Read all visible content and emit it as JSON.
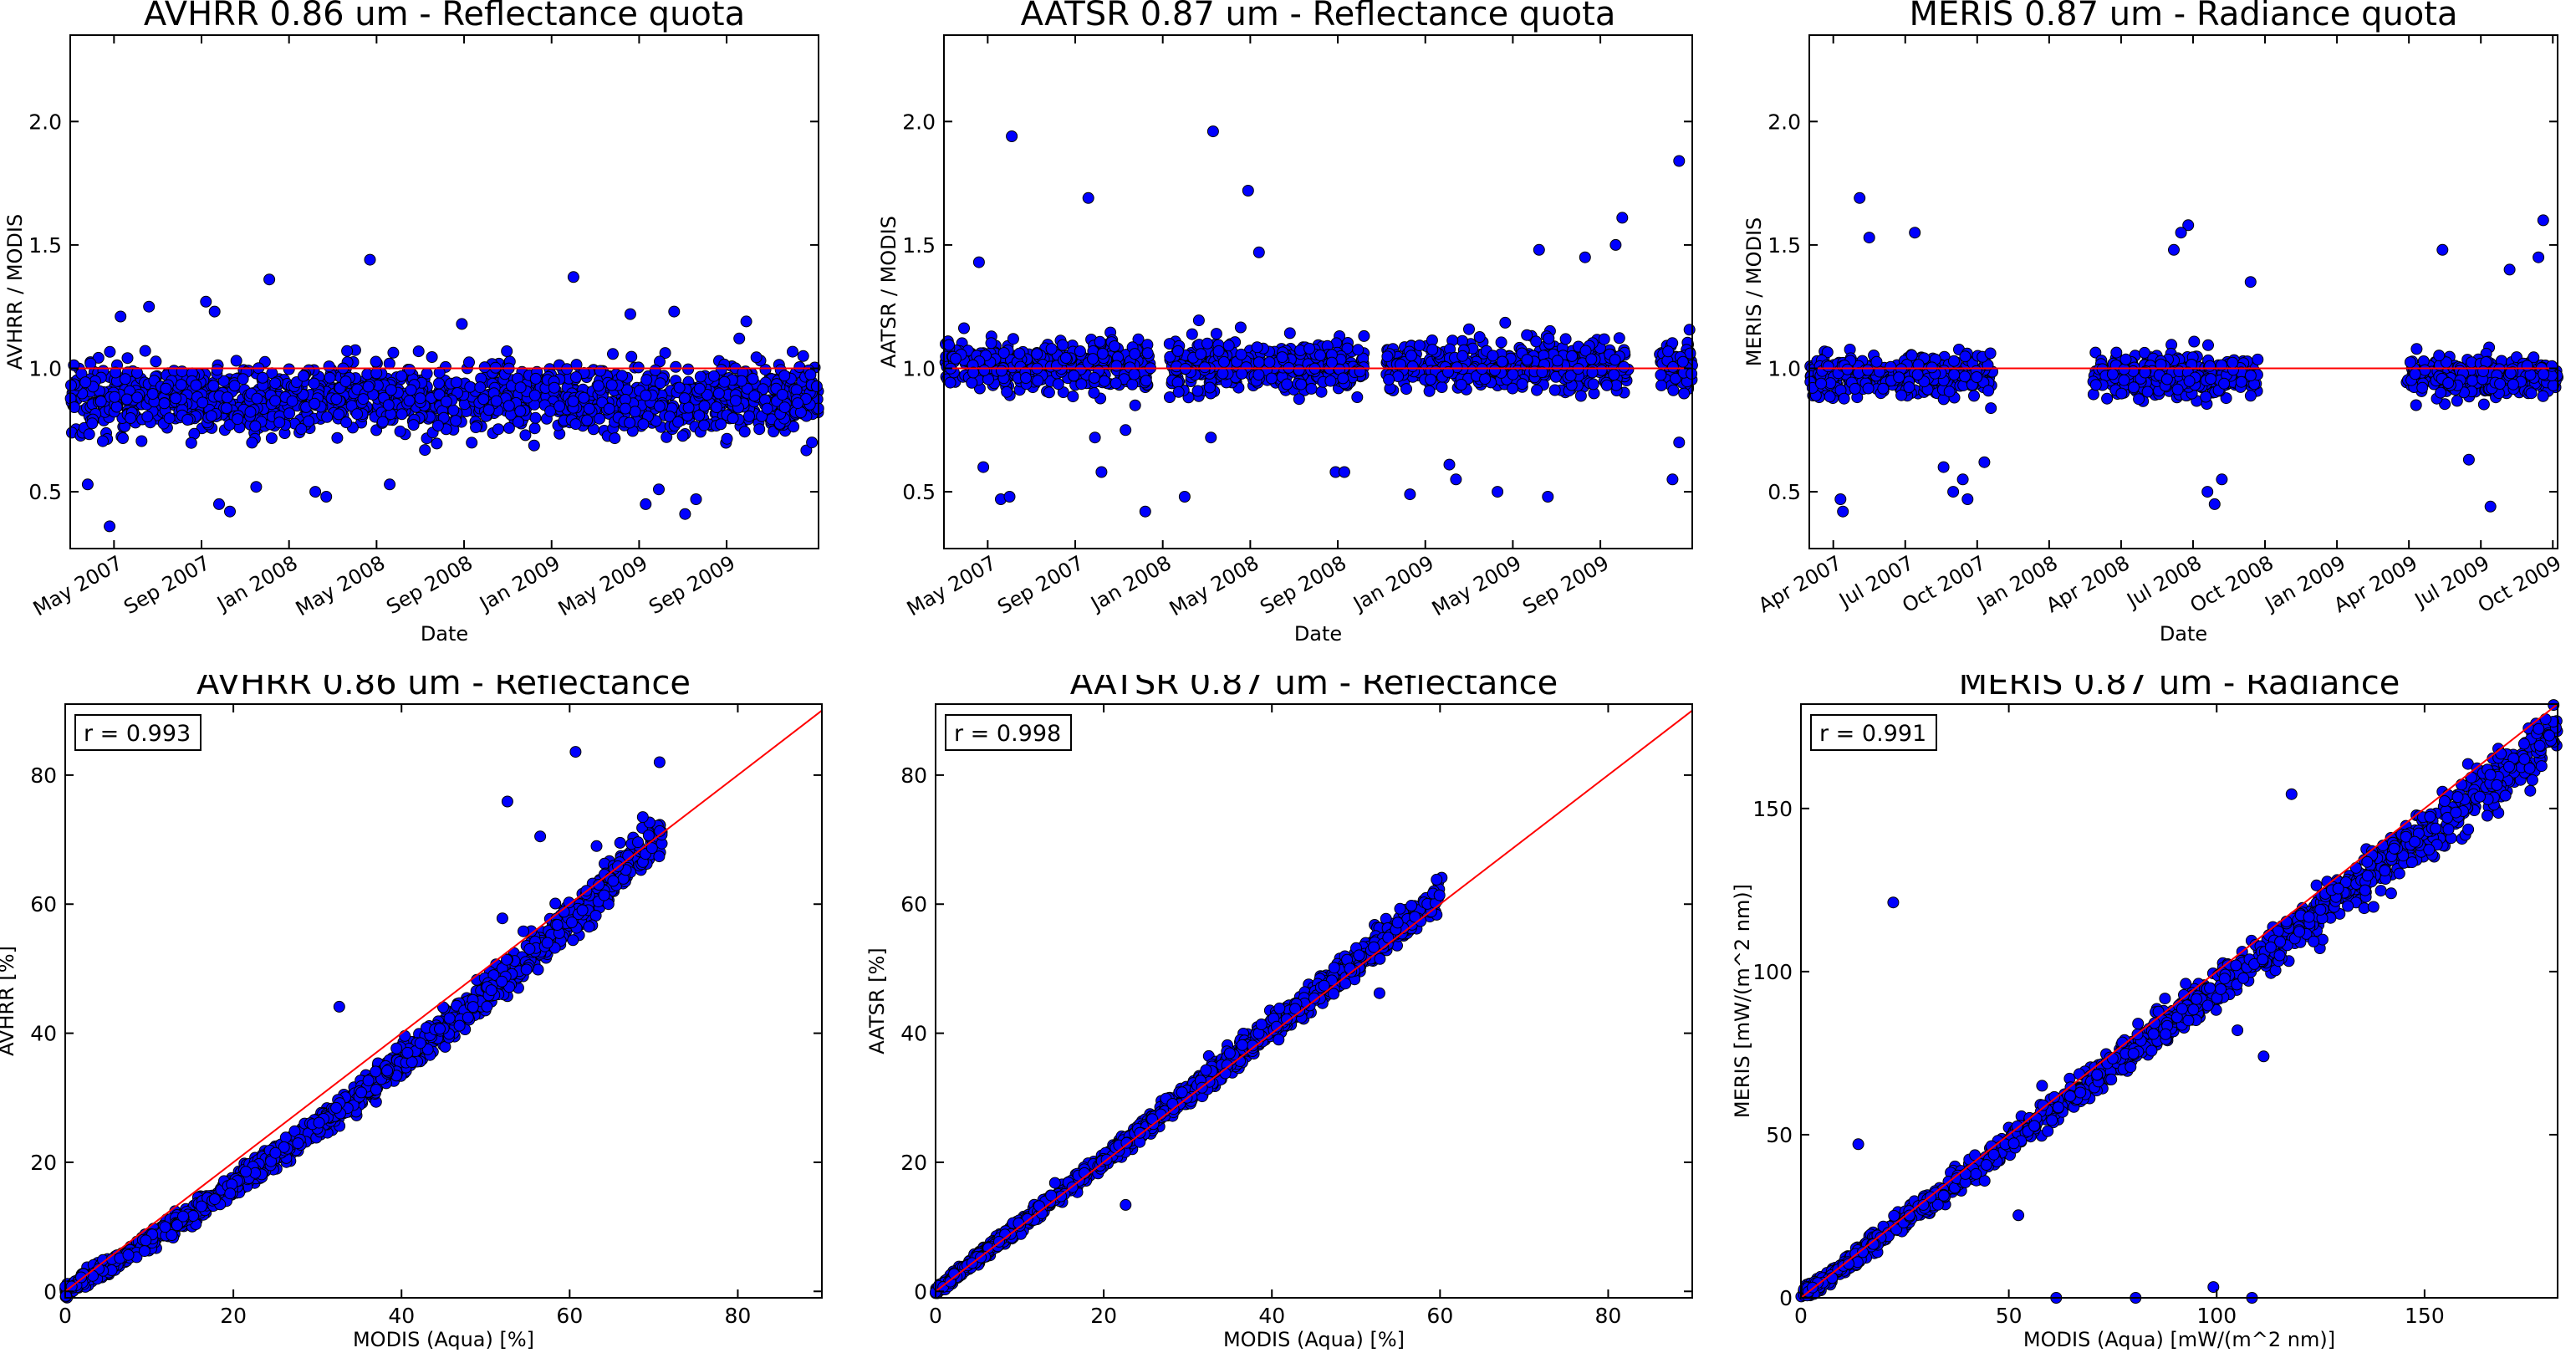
{
  "colors": {
    "marker": "#0000ff",
    "marker_edge": "#000000",
    "line": "#ff0000",
    "axes": "#000000",
    "background": "#ffffff"
  },
  "charts": [
    {
      "type": "scatter",
      "title": "AVHRR 0.86 um - Reflectance quota",
      "xlabel": "Date",
      "ylabel": "AVHRR / MODIS",
      "xlim": [
        0,
        34.2
      ],
      "ylim": [
        0.27,
        2.35
      ],
      "yticks": [
        0.5,
        1.0,
        1.5,
        2.0
      ],
      "ytick_labels": [
        "0.5",
        "1.0",
        "1.5",
        "2.0"
      ],
      "xticks": [
        2,
        6,
        10,
        14,
        18,
        22,
        26,
        30
      ],
      "xtick_labels": [
        "May 2007",
        "Sep 2007",
        "Jan 2008",
        "May 2008",
        "Sep 2008",
        "Jan 2009",
        "May 2009",
        "Sep 2009"
      ],
      "reference_line": {
        "type": "horizontal",
        "y": 1.0
      },
      "cluster": {
        "segments": [
          [
            0,
            34.2
          ]
        ],
        "center": 0.88,
        "spread": 0.07,
        "count": 1500
      },
      "outliers": [
        [
          0.8,
          0.53
        ],
        [
          3.6,
          1.25
        ],
        [
          6.2,
          1.27
        ],
        [
          6.6,
          1.23
        ],
        [
          6.8,
          0.45
        ],
        [
          7.3,
          0.42
        ],
        [
          8.5,
          0.52
        ],
        [
          9.1,
          1.36
        ],
        [
          11.2,
          0.5
        ],
        [
          11.7,
          0.48
        ],
        [
          13.7,
          1.44
        ],
        [
          1.8,
          0.36
        ],
        [
          14.6,
          0.53
        ],
        [
          17.9,
          1.18
        ],
        [
          23.0,
          1.37
        ],
        [
          25.6,
          1.22
        ],
        [
          26.3,
          0.45
        ],
        [
          26.9,
          0.51
        ],
        [
          27.6,
          1.23
        ],
        [
          28.1,
          0.41
        ],
        [
          28.6,
          0.47
        ],
        [
          30.9,
          1.19
        ],
        [
          2.3,
          1.21
        ],
        [
          33.9,
          0.7
        ],
        [
          33.5,
          1.05
        ]
      ]
    },
    {
      "type": "scatter",
      "title": "AATSR 0.87 um - Reflectance quota",
      "xlabel": "Date",
      "ylabel": "AATSR / MODIS",
      "xlim": [
        0,
        34.2
      ],
      "ylim": [
        0.27,
        2.35
      ],
      "yticks": [
        0.5,
        1.0,
        1.5,
        2.0
      ],
      "ytick_labels": [
        "0.5",
        "1.0",
        "1.5",
        "2.0"
      ],
      "xticks": [
        2,
        6,
        10,
        14,
        18,
        22,
        26,
        30
      ],
      "xtick_labels": [
        "May 2007",
        "Sep 2007",
        "Jan 2008",
        "May 2008",
        "Sep 2008",
        "Jan 2009",
        "May 2009",
        "Sep 2009"
      ],
      "reference_line": {
        "type": "horizontal",
        "y": 1.0
      },
      "cluster": {
        "segments": [
          [
            0,
            9.5
          ],
          [
            10.3,
            19.2
          ],
          [
            20.2,
            31.3
          ],
          [
            32.7,
            34.2
          ]
        ],
        "center": 1.01,
        "spread": 0.05,
        "count": 1300
      },
      "outliers": [
        [
          3.1,
          1.94
        ],
        [
          12.3,
          1.96
        ],
        [
          13.9,
          1.72
        ],
        [
          14.4,
          1.47
        ],
        [
          6.6,
          1.69
        ],
        [
          1.8,
          0.6
        ],
        [
          2.6,
          0.47
        ],
        [
          3.0,
          0.48
        ],
        [
          6.9,
          0.72
        ],
        [
          7.2,
          0.58
        ],
        [
          8.3,
          0.75
        ],
        [
          9.2,
          0.42
        ],
        [
          11.0,
          0.48
        ],
        [
          12.2,
          0.72
        ],
        [
          17.9,
          0.58
        ],
        [
          18.3,
          0.58
        ],
        [
          21.3,
          0.49
        ],
        [
          23.1,
          0.61
        ],
        [
          23.4,
          0.55
        ],
        [
          25.3,
          0.5
        ],
        [
          27.6,
          0.48
        ],
        [
          31.0,
          1.61
        ],
        [
          30.7,
          1.5
        ],
        [
          33.6,
          1.84
        ],
        [
          33.3,
          0.55
        ],
        [
          33.6,
          0.7
        ],
        [
          1.6,
          1.43
        ],
        [
          27.2,
          1.48
        ],
        [
          29.3,
          1.45
        ]
      ]
    },
    {
      "type": "scatter",
      "title": "MERIS 0.87 um - Radiance quota",
      "xlabel": "Date",
      "ylabel": "MERIS / MODIS",
      "xlim": [
        0,
        31.2
      ],
      "ylim": [
        0.27,
        2.35
      ],
      "yticks": [
        0.5,
        1.0,
        1.5,
        2.0
      ],
      "ytick_labels": [
        "0.5",
        "1.0",
        "1.5",
        "2.0"
      ],
      "xticks": [
        1,
        4,
        7,
        10,
        13,
        16,
        19,
        22,
        25,
        28,
        31
      ],
      "xtick_labels": [
        "Apr 2007",
        "Jul 2007",
        "Oct 2007",
        "Jan 2008",
        "Apr 2008",
        "Jul 2008",
        "Oct 2008",
        "Jan 2009",
        "Apr 2009",
        "Jul 2009",
        "Oct 2009"
      ],
      "reference_line": {
        "type": "horizontal",
        "y": 1.0
      },
      "cluster": {
        "segments": [
          [
            0,
            7.7
          ],
          [
            11.8,
            18.7
          ],
          [
            24.9,
            31.2
          ]
        ],
        "center": 0.97,
        "spread": 0.04,
        "count": 1000
      },
      "outliers": [
        [
          2.1,
          1.69
        ],
        [
          2.5,
          1.53
        ],
        [
          4.4,
          1.55
        ],
        [
          1.3,
          0.47
        ],
        [
          1.4,
          0.42
        ],
        [
          5.6,
          0.6
        ],
        [
          6.0,
          0.5
        ],
        [
          6.6,
          0.47
        ],
        [
          6.4,
          0.55
        ],
        [
          7.3,
          0.62
        ],
        [
          15.8,
          1.58
        ],
        [
          15.5,
          1.55
        ],
        [
          15.2,
          1.48
        ],
        [
          16.6,
          0.5
        ],
        [
          16.9,
          0.45
        ],
        [
          17.2,
          0.55
        ],
        [
          18.4,
          1.35
        ],
        [
          26.4,
          1.48
        ],
        [
          29.2,
          1.4
        ],
        [
          30.6,
          1.6
        ],
        [
          30.4,
          1.45
        ],
        [
          28.4,
          0.44
        ],
        [
          27.5,
          0.63
        ]
      ]
    },
    {
      "type": "scatter",
      "title": "AVHRR 0.86 um - Reflectance",
      "xlabel": "MODIS (Aqua) [%]",
      "ylabel": "AVHRR [%]",
      "annotation": "r = 0.993",
      "xlim": [
        0,
        90
      ],
      "ylim": [
        -1,
        91
      ],
      "xticks": [
        0,
        20,
        40,
        60,
        80
      ],
      "xtick_labels": [
        "0",
        "20",
        "40",
        "60",
        "80"
      ],
      "yticks": [
        0,
        20,
        40,
        60,
        80
      ],
      "ytick_labels": [
        "0",
        "20",
        "40",
        "60",
        "80"
      ],
      "reference_line": {
        "type": "identity"
      },
      "cluster": {
        "x_range": [
          0,
          71
        ],
        "slope": 1.0,
        "curve": 0.28,
        "spread": 1.2,
        "count": 1700
      },
      "outliers": [
        [
          60.7,
          83.6
        ],
        [
          52.6,
          75.9
        ],
        [
          70.7,
          82.0
        ],
        [
          32.6,
          44.1
        ],
        [
          56.5,
          70.5
        ],
        [
          63.2,
          69.0
        ],
        [
          66.0,
          69.5
        ],
        [
          68.7,
          73.5
        ],
        [
          62.3,
          56.5
        ],
        [
          52.0,
          57.8
        ],
        [
          58.3,
          60.1
        ],
        [
          54.5,
          55.8
        ]
      ]
    },
    {
      "type": "scatter",
      "title": "AATSR 0.87 um - Reflectance",
      "xlabel": "MODIS (Aqua) [%]",
      "ylabel": "AATSR [%]",
      "annotation": "r = 0.998",
      "xlim": [
        0,
        90
      ],
      "ylim": [
        -1,
        91
      ],
      "xticks": [
        0,
        20,
        40,
        60,
        80
      ],
      "xtick_labels": [
        "0",
        "20",
        "40",
        "60",
        "80"
      ],
      "yticks": [
        0,
        20,
        40,
        60,
        80
      ],
      "ytick_labels": [
        "0",
        "20",
        "40",
        "60",
        "80"
      ],
      "reference_line": {
        "type": "identity"
      },
      "cluster": {
        "x_range": [
          0,
          60
        ],
        "slope": 1.02,
        "curve": 0,
        "spread": 0.9,
        "count": 1500
      },
      "outliers": [
        [
          60.2,
          64.1
        ],
        [
          59.6,
          63.8
        ],
        [
          52.8,
          46.2
        ],
        [
          40.8,
          39.0
        ],
        [
          14.2,
          16.8
        ],
        [
          22.6,
          13.4
        ],
        [
          35.0,
          36.9
        ]
      ]
    },
    {
      "type": "scatter",
      "title": "MERIS 0.87 um - Radiance",
      "xlabel": "MODIS (Aqua) [mW/(m^2 nm)]",
      "ylabel": "MERIS [mW/(m^2 nm)]",
      "annotation": "r = 0.991",
      "xlim": [
        0,
        182
      ],
      "ylim": [
        0,
        182
      ],
      "xticks": [
        0,
        50,
        100,
        150
      ],
      "xtick_labels": [
        "0",
        "50",
        "100",
        "150"
      ],
      "yticks": [
        0,
        50,
        100,
        150
      ],
      "ytick_labels": [
        "0",
        "50",
        "100",
        "150"
      ],
      "reference_line": {
        "type": "identity"
      },
      "cluster": {
        "x_range": [
          0,
          182
        ],
        "slope": 0.95,
        "curve": 0,
        "spread": 3.0,
        "count": 1500
      },
      "outliers": [
        [
          22.2,
          121.2
        ],
        [
          118.0,
          154.4
        ],
        [
          99.2,
          3.3
        ],
        [
          108.5,
          0.0
        ],
        [
          61.4,
          0.0
        ],
        [
          80.5,
          0.0
        ],
        [
          105.0,
          82.0
        ],
        [
          111.3,
          74.0
        ],
        [
          52.3,
          25.3
        ],
        [
          13.8,
          47.1
        ],
        [
          58.0,
          65.0
        ]
      ]
    }
  ]
}
